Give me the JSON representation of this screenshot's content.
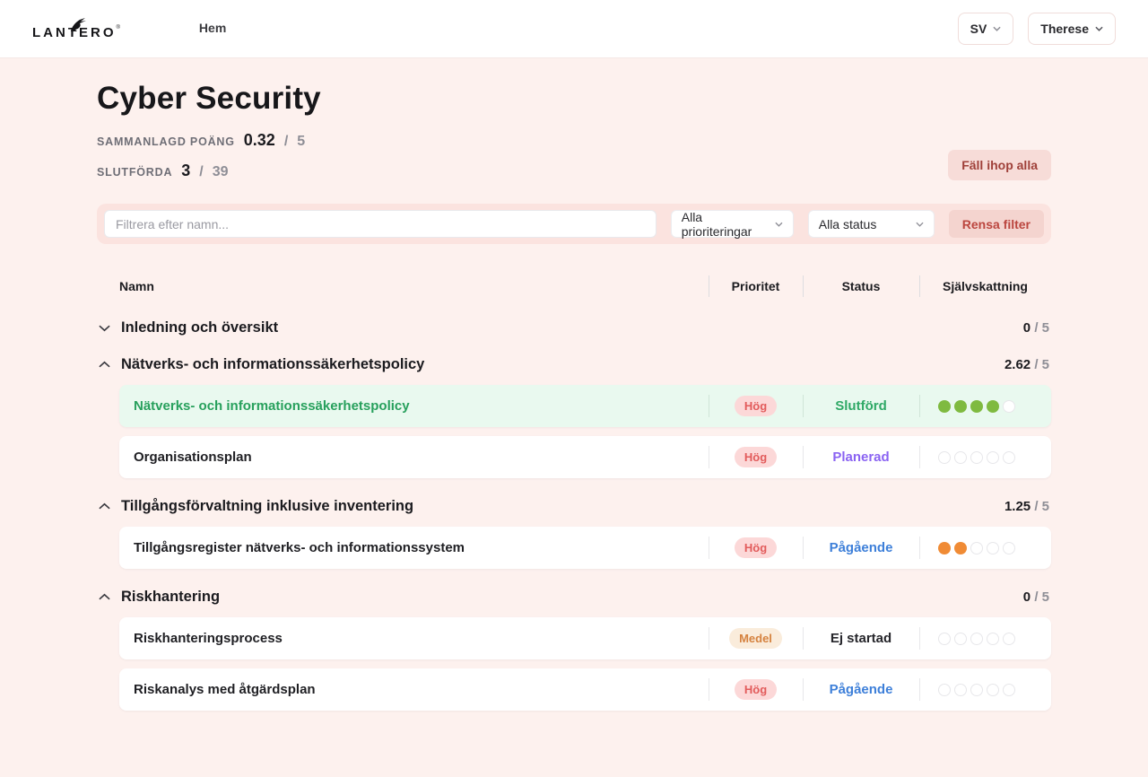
{
  "header": {
    "logo_text": "LANTERO",
    "logo_mark": "®",
    "nav_home": "Hem",
    "language_button": "SV",
    "user_button": "Therese"
  },
  "page": {
    "title": "Cyber Security",
    "stats": [
      {
        "label": "SAMMANLAGD POÄNG",
        "value": "0.32",
        "sep": "/",
        "max": "5"
      },
      {
        "label": "SLUTFÖRDA",
        "value": "3",
        "sep": "/",
        "max": "39"
      }
    ],
    "collapse_all_button": "Fäll ihop alla"
  },
  "filters": {
    "name_placeholder": "Filtrera efter namn...",
    "priority_select": "Alla prioriteringar",
    "status_select": "Alla status",
    "clear_button": "Rensa filter"
  },
  "table": {
    "columns": {
      "name": "Namn",
      "priority": "Prioritet",
      "status": "Status",
      "rating": "Självskattning"
    },
    "groups": [
      {
        "name": "Inledning och översikt",
        "expanded": false,
        "score": "0",
        "sep": "/",
        "max": "5",
        "items": []
      },
      {
        "name": "Nätverks- och informationssäkerhetspolicy",
        "expanded": true,
        "score": "2.62",
        "sep": "/",
        "max": "5",
        "items": [
          {
            "name": "Nätverks- och informationssäkerhetspolicy",
            "priority": "Hög",
            "priority_style": "high",
            "status": "Slutförd",
            "status_style": "done",
            "rating": 4,
            "rating_style": "green",
            "completed": true
          },
          {
            "name": "Organisationsplan",
            "priority": "Hög",
            "priority_style": "high",
            "status": "Planerad",
            "status_style": "planned",
            "rating": 0,
            "rating_style": "green",
            "completed": false
          }
        ]
      },
      {
        "name": "Tillgångsförvaltning inklusive inventering",
        "expanded": true,
        "score": "1.25",
        "sep": "/",
        "max": "5",
        "items": [
          {
            "name": "Tillgångsregister nätverks- och informationssystem",
            "priority": "Hög",
            "priority_style": "high",
            "status": "Pågående",
            "status_style": "progress",
            "rating": 2,
            "rating_style": "orange",
            "completed": false
          }
        ]
      },
      {
        "name": "Riskhantering",
        "expanded": true,
        "score": "0",
        "sep": "/",
        "max": "5",
        "items": [
          {
            "name": "Riskhanteringsprocess",
            "priority": "Medel",
            "priority_style": "medium",
            "status": "Ej startad",
            "status_style": "none",
            "rating": 0,
            "rating_style": "green",
            "completed": false
          },
          {
            "name": "Riskanalys med åtgärdsplan",
            "priority": "Hög",
            "priority_style": "high",
            "status": "Pågående",
            "status_style": "progress",
            "rating": 0,
            "rating_style": "green",
            "completed": false
          }
        ]
      }
    ],
    "rating_dots_total": 5
  },
  "colors": {
    "page_background": "#fdf1ee",
    "topbar_background": "#ffffff",
    "filterbar_background": "#fbe3df",
    "pink_button_bg": "#f7dcd8",
    "pink_button_text": "#9f4039",
    "clear_button_bg": "#f4d4cf",
    "clear_button_text": "#bb463f",
    "badge_high_bg": "#fcd8d8",
    "badge_high_text": "#e25b5b",
    "badge_medium_bg": "#faecdb",
    "badge_medium_text": "#d5823f",
    "status_done": "#2fa966",
    "status_planned": "#8a63f2",
    "status_progress": "#3d7fd9",
    "status_none": "#26262b",
    "done_row_bg": "#e9f9ef",
    "done_row_text": "#27a05c",
    "dot_green": "#7fba40",
    "dot_orange": "#f08b35"
  }
}
